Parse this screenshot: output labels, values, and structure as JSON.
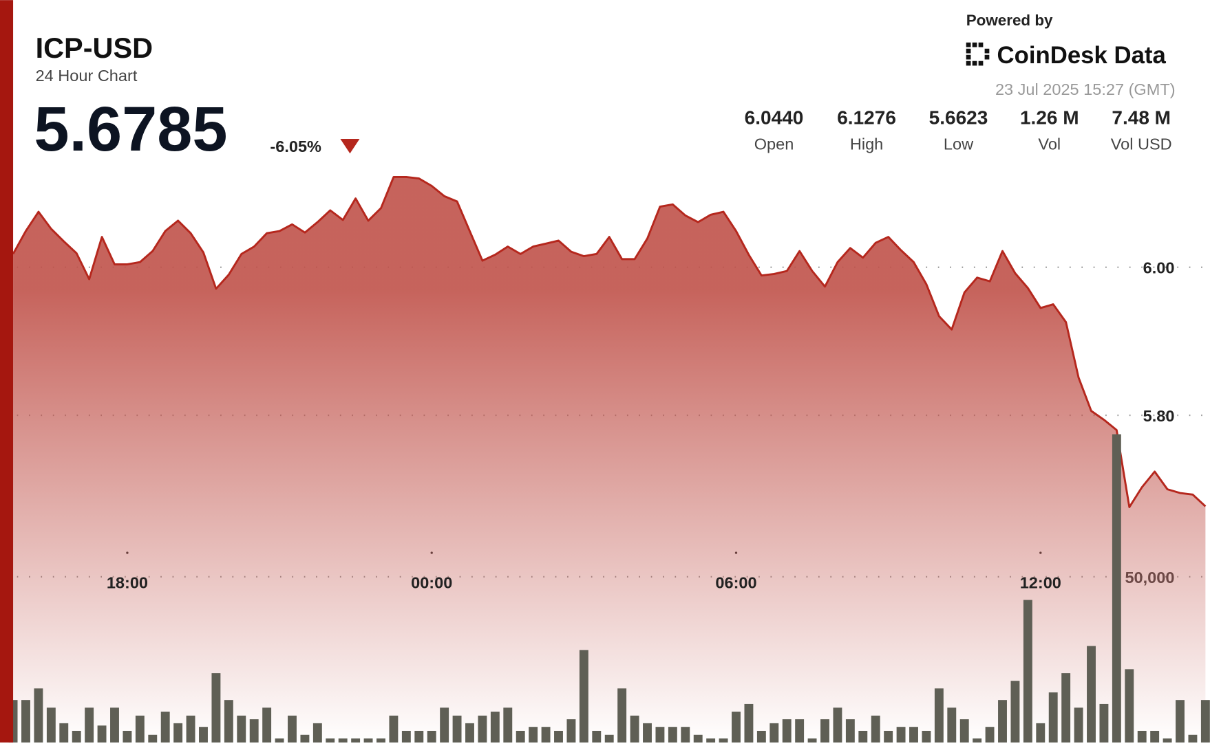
{
  "header": {
    "title": "ICP-USD",
    "subtitle": "24 Hour Chart",
    "price": "5.6785",
    "change": "-6.05%",
    "powered_by": "Powered by",
    "brand": "CoinDesk Data",
    "timestamp": "23 Jul 2025 15:27 (GMT)"
  },
  "stats": [
    {
      "value": "6.0440",
      "label": "Open"
    },
    {
      "value": "6.1276",
      "label": "High"
    },
    {
      "value": "5.6623",
      "label": "Low"
    },
    {
      "value": "1.26 M",
      "label": "Vol"
    },
    {
      "value": "7.48 M",
      "label": "Vol USD"
    }
  ],
  "chart_data": {
    "type": "line",
    "x": [
      15.75,
      16,
      16.25,
      16.5,
      16.75,
      17,
      17.25,
      17.5,
      17.75,
      18,
      18.25,
      18.5,
      18.75,
      19,
      19.25,
      19.5,
      19.75,
      20,
      20.25,
      20.5,
      20.75,
      21,
      21.25,
      21.5,
      21.75,
      22,
      22.25,
      22.5,
      22.75,
      23,
      23.25,
      23.5,
      23.75,
      24,
      24.25,
      24.5,
      24.75,
      25,
      25.25,
      25.5,
      25.75,
      26,
      26.25,
      26.5,
      26.75,
      27,
      27.25,
      27.5,
      27.75,
      28,
      28.25,
      28.5,
      28.75,
      29,
      29.25,
      29.5,
      29.75,
      30,
      30.25,
      30.5,
      30.75,
      31,
      31.25,
      31.5,
      31.75,
      32,
      32.25,
      32.5,
      32.75,
      33,
      33.25,
      33.5,
      33.75,
      34,
      34.25,
      34.5,
      34.75,
      35,
      35.25,
      35.5,
      35.75,
      36,
      36.25,
      36.5,
      36.75,
      37,
      37.25,
      37.5,
      37.75,
      38,
      38.25,
      38.5,
      38.75,
      39,
      39.25
    ],
    "xlim": [
      15.75,
      39.34
    ],
    "xticks": [
      {
        "value": 18,
        "label": "18:00"
      },
      {
        "value": 24,
        "label": "00:00"
      },
      {
        "value": 30,
        "label": "06:00"
      },
      {
        "value": 36,
        "label": "12:00"
      }
    ],
    "ylim": [
      5.358,
      6.361
    ],
    "yticks": [
      {
        "value": 5.8,
        "label": "5.80"
      },
      {
        "value": 6,
        "label": "6.00"
      }
    ],
    "y2lim": [
      0,
      224000
    ],
    "y2ticks": [
      {
        "value": 50000,
        "label": "50,000"
      }
    ],
    "grid": true,
    "series": [
      {
        "color": "#b5271d",
        "values": [
          6.018,
          6.049,
          6.075,
          6.052,
          6.035,
          6.019,
          5.984,
          6.041,
          6.004,
          6.004,
          6.007,
          6.022,
          6.049,
          6.063,
          6.046,
          6.02,
          5.971,
          5.99,
          6.018,
          6.028,
          6.046,
          6.049,
          6.058,
          6.047,
          6.061,
          6.077,
          6.064,
          6.093,
          6.063,
          6.08,
          6.122,
          6.122,
          6.12,
          6.11,
          6.096,
          6.089,
          6.049,
          6.009,
          6.017,
          6.028,
          6.018,
          6.028,
          6.032,
          6.036,
          6.021,
          6.015,
          6.018,
          6.041,
          6.011,
          6.011,
          6.039,
          6.082,
          6.085,
          6.07,
          6.061,
          6.071,
          6.075,
          6.049,
          6.017,
          5.989,
          5.991,
          5.995,
          6.022,
          5.995,
          5.974,
          6.007,
          6.026,
          6.013,
          6.033,
          6.041,
          6.023,
          6.007,
          5.977,
          5.934,
          5.916,
          5.966,
          5.986,
          5.981,
          6.022,
          5.992,
          5.972,
          5.945,
          5.95,
          5.926,
          5.851,
          5.806,
          5.794,
          5.78,
          5.676,
          5.703,
          5.724,
          5.7,
          5.695,
          5.693,
          5.677
        ]
      },
      {
        "type": "bar",
        "axis": "y2",
        "color": "#5f5f55",
        "values": [
          12800,
          12800,
          16300,
          10500,
          5800,
          3500,
          10500,
          5100,
          10500,
          3500,
          8100,
          2300,
          9300,
          5800,
          8100,
          4700,
          20900,
          12800,
          8100,
          7000,
          10500,
          1200,
          8100,
          2300,
          5800,
          1200,
          1200,
          1200,
          1200,
          1200,
          8100,
          3500,
          3500,
          3500,
          10500,
          8100,
          5800,
          8100,
          9300,
          10500,
          3500,
          4700,
          4700,
          3500,
          7000,
          27900,
          3500,
          2300,
          16300,
          8100,
          5800,
          4700,
          4700,
          4700,
          2300,
          1200,
          1200,
          9300,
          11600,
          3500,
          5800,
          7000,
          7000,
          1200,
          7000,
          10500,
          7000,
          3500,
          8100,
          3500,
          4700,
          4700,
          3500,
          16300,
          10500,
          7000,
          1200,
          4700,
          12800,
          18600,
          43000,
          5800,
          15100,
          20900,
          10500,
          29100,
          11600,
          93000,
          22100,
          3500,
          3500,
          1200,
          12800,
          2300,
          12800
        ]
      }
    ]
  }
}
